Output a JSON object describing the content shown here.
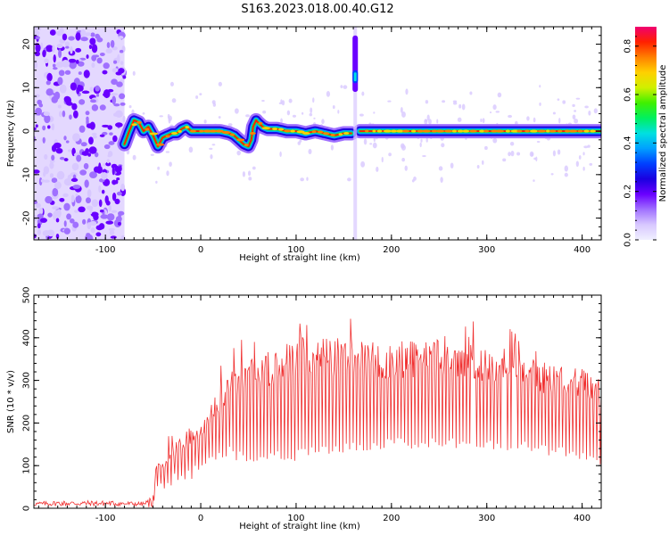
{
  "figure_title": "S163.2023.018.00.40.G12",
  "colors": {
    "snr_line": "#f03030",
    "colormap": [
      "#f0f0ff",
      "#d8c8ff",
      "#a070ff",
      "#6a00ff",
      "#1a00e0",
      "#0040ff",
      "#00a0ff",
      "#00e0e0",
      "#00f060",
      "#40f000",
      "#d0f000",
      "#ffd000",
      "#ff8000",
      "#ff2000",
      "#f00070"
    ]
  },
  "chart_data": [
    {
      "type": "heatmap",
      "xlabel": "Height of straight line (km)",
      "ylabel": "Frequency (Hz)",
      "xlim": [
        -175,
        420
      ],
      "ylim": [
        -25,
        24
      ],
      "x_ticks": [
        -100,
        0,
        100,
        200,
        300,
        400
      ],
      "y_ticks": [
        -20,
        -10,
        0,
        10,
        20
      ],
      "colorbar": {
        "label": "Normalized spectral amplitude",
        "range": [
          0.0,
          0.88
        ],
        "ticks": [
          "0.0",
          "0.2",
          "0.4",
          "0.6",
          "0.8"
        ]
      },
      "noise_region_x": [
        -175,
        -80
      ],
      "ridge": {
        "x": [
          -80,
          -75,
          -70,
          -65,
          -60,
          -55,
          -50,
          -45,
          -40,
          -35,
          -30,
          -25,
          -20,
          -15,
          -10,
          0,
          10,
          20,
          30,
          35,
          40,
          45,
          50,
          53,
          55,
          58,
          60,
          65,
          70,
          80,
          90,
          100,
          110,
          120,
          130,
          140,
          150,
          160,
          165,
          170,
          180,
          200,
          250,
          300,
          350,
          400,
          420
        ],
        "y": [
          -3,
          0,
          2.5,
          2,
          0,
          1,
          -1,
          -3.5,
          -1.5,
          -1,
          -0.5,
          -0.5,
          0.5,
          1,
          0,
          0,
          0,
          0,
          -0.5,
          -1,
          -2,
          -3,
          -3.5,
          -2,
          1,
          2.5,
          2,
          1,
          0.5,
          0.5,
          0,
          0,
          -0.5,
          0,
          -0.5,
          -1,
          -0.5,
          -0.5,
          0,
          0,
          0,
          0,
          0,
          0,
          0,
          0,
          0
        ]
      },
      "spike": {
        "x": 162,
        "y_min": 11,
        "y_max": 14
      },
      "gap_x": [
        158,
        167
      ]
    },
    {
      "type": "line",
      "xlabel": "Height of straight line (km)",
      "ylabel": "SNR (10 * v/v)",
      "xlim": [
        -175,
        420
      ],
      "ylim": [
        0,
        500
      ],
      "x_ticks": [
        -100,
        0,
        100,
        200,
        300,
        400
      ],
      "y_ticks": [
        0,
        100,
        200,
        300,
        400,
        500
      ],
      "series": [
        {
          "x": [
            -175,
            -150,
            -100,
            -60,
            -50,
            -45,
            -40,
            -30,
            -20,
            -10,
            0,
            10,
            20,
            30,
            40,
            50,
            60,
            80,
            100,
            110,
            120,
            150,
            200,
            250,
            300,
            350,
            400,
            420
          ],
          "upper": [
            15,
            18,
            18,
            15,
            30,
            140,
            110,
            150,
            170,
            200,
            200,
            250,
            270,
            310,
            330,
            350,
            360,
            380,
            400,
            430,
            400,
            400,
            390,
            400,
            380,
            350,
            330,
            300
          ],
          "lower": [
            5,
            5,
            5,
            5,
            0,
            30,
            40,
            55,
            60,
            65,
            90,
            110,
            110,
            120,
            110,
            110,
            110,
            110,
            110,
            120,
            125,
            130,
            140,
            140,
            140,
            130,
            110,
            95
          ]
        }
      ]
    }
  ]
}
